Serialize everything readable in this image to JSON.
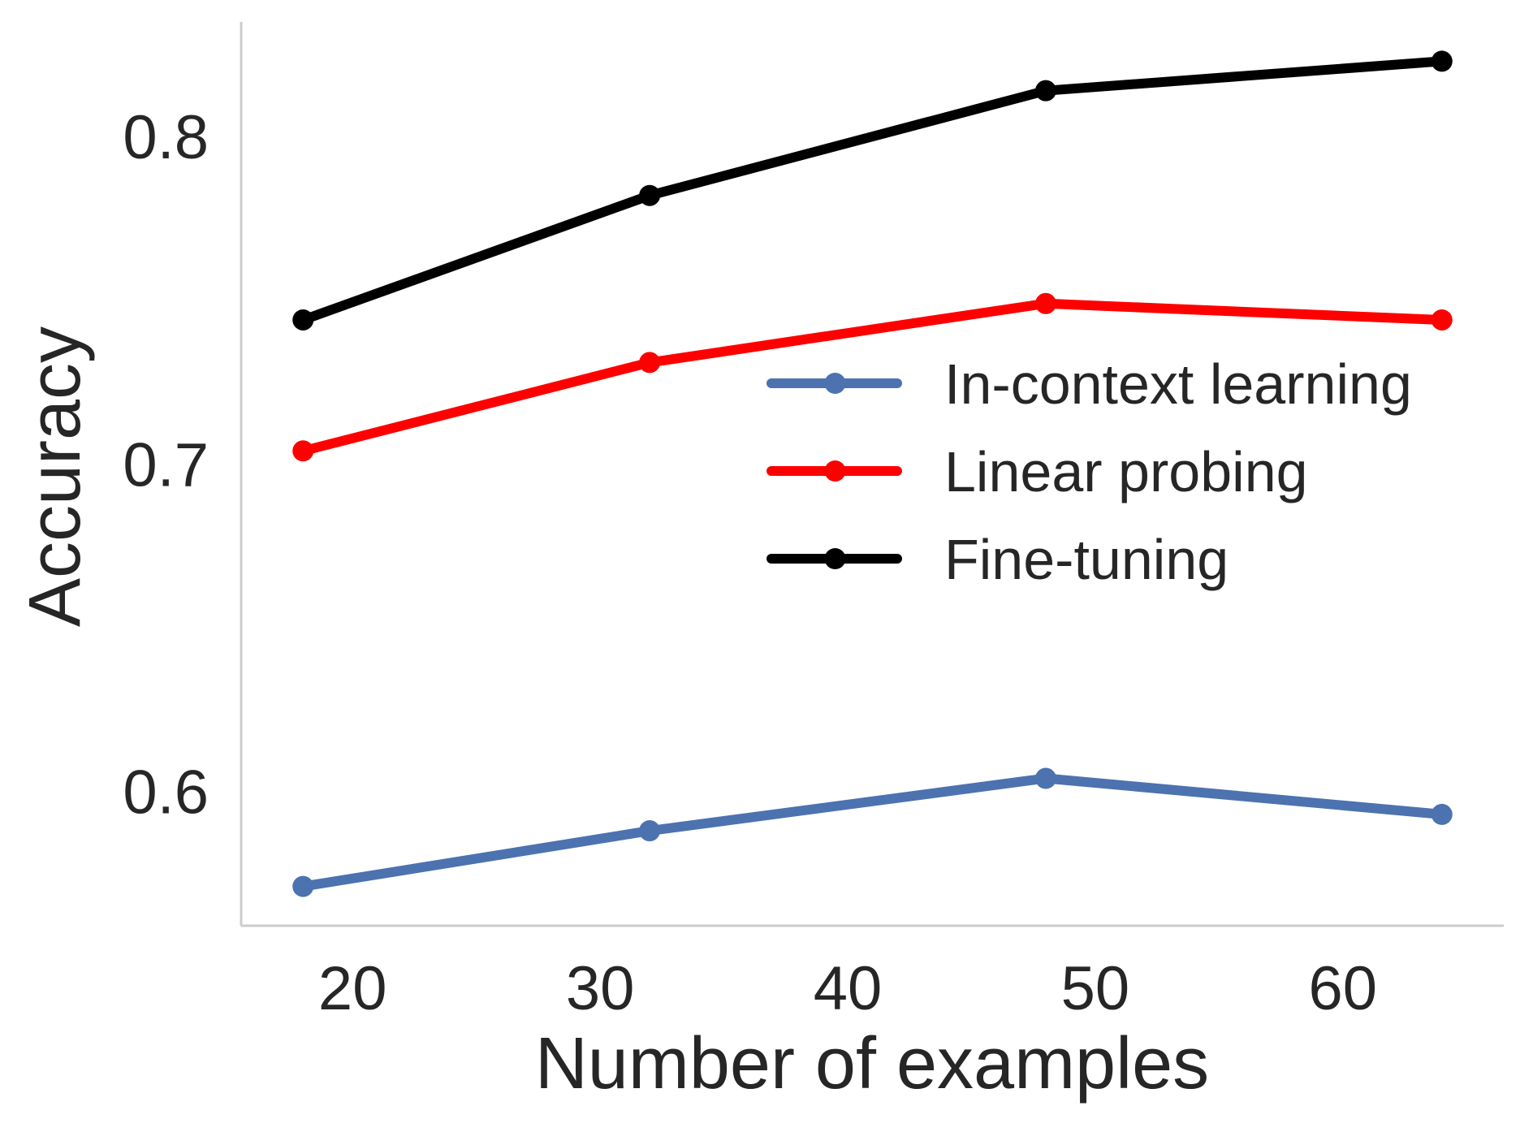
{
  "chart_data": {
    "type": "line",
    "title": "",
    "xlabel": "Number of examples",
    "ylabel": "Accuracy",
    "x": [
      18,
      32,
      48,
      64
    ],
    "xlim": [
      15.5,
      66.5
    ],
    "ylim": [
      0.559,
      0.835
    ],
    "xticks": [
      20,
      30,
      40,
      50,
      60
    ],
    "xtick_labels": [
      "20",
      "30",
      "40",
      "50",
      "60"
    ],
    "yticks": [
      0.6,
      0.7,
      0.8
    ],
    "ytick_labels": [
      "0.6",
      "0.7",
      "0.8"
    ],
    "grid": false,
    "legend_position": "center-right",
    "series": [
      {
        "name": "In-context learning",
        "color": "#4C72B0",
        "values": [
          0.571,
          0.588,
          0.604,
          0.593
        ]
      },
      {
        "name": "Linear probing",
        "color": "#FF0000",
        "values": [
          0.704,
          0.731,
          0.749,
          0.744
        ]
      },
      {
        "name": "Fine-tuning",
        "color": "#000000",
        "values": [
          0.744,
          0.782,
          0.814,
          0.823
        ]
      }
    ]
  }
}
